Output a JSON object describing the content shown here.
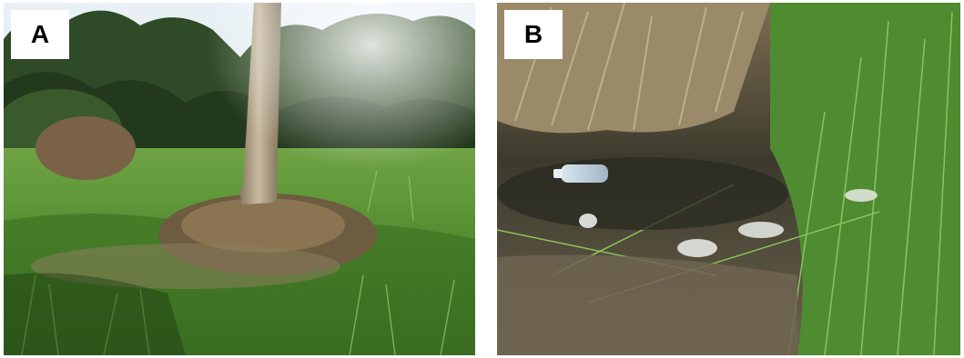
{
  "panels": [
    {
      "label": "A"
    },
    {
      "label": "B"
    }
  ],
  "colors": {
    "sky": "#dfeaf2",
    "dark_tree": "#233a20",
    "grass": "#5e9a3a",
    "dry_grass": "#8a7856",
    "trunk": "#b5a68c"
  }
}
